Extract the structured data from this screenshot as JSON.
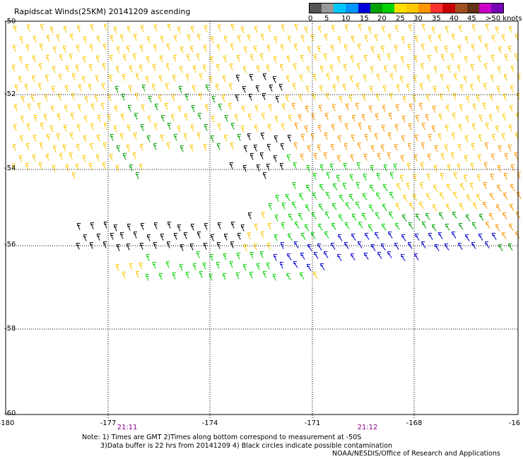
{
  "title": "Rapidscat Winds(25KM) 20141209 ascending",
  "legend": {
    "colors": [
      "#555555",
      "#999999",
      "#00c8ff",
      "#0096ff",
      "#0000dc",
      "#00a000",
      "#00d200",
      "#ffe000",
      "#ffc800",
      "#ff9600",
      "#ff3232",
      "#c80000",
      "#a0501e",
      "#643214",
      "#c800c8",
      "#7800b4"
    ],
    "labels": [
      "0",
      "5",
      "10",
      "15",
      "20",
      "25",
      "30",
      "35",
      "40",
      "45",
      ">50 knots"
    ]
  },
  "axes": {
    "lat_labels": [
      "-50",
      "-52",
      "-54",
      "-56",
      "-58",
      "-60"
    ],
    "lon_labels": [
      "-180",
      "-177",
      "-174",
      "-171",
      "-168",
      "-16"
    ],
    "time_labels": [
      "21:11",
      "21:12"
    ]
  },
  "notes": {
    "line1": "Note: 1) Times are GMT 2)Times along bottom correspond to measurement at -50S",
    "line2": "3)Data buffer is 22 hrs from 20141209 4) Black circles indicate possible contamination",
    "credit": "NOAA/NESDIS/Office of Research and Applications"
  },
  "wind_colors": {
    "black": "#000000",
    "blue": "#0000d2",
    "green": "#00a000",
    "lightgreen": "#00d200",
    "yellow": "#ffe000",
    "gold": "#ffc800",
    "orange": "#ff9600",
    "red": "#dc3c00"
  }
}
